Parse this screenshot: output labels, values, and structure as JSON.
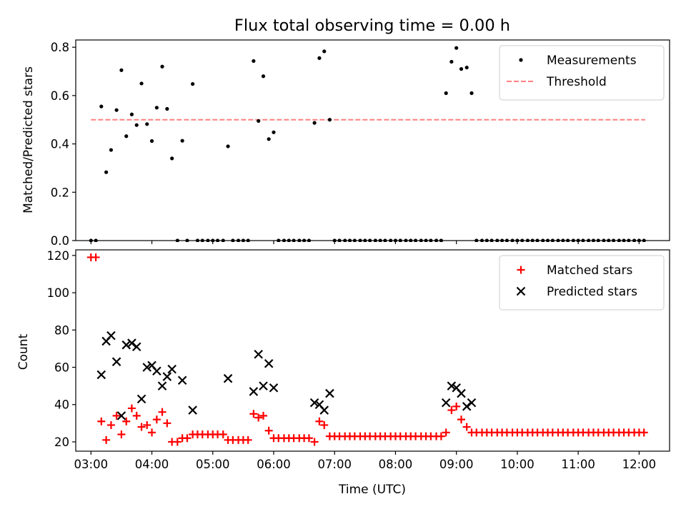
{
  "title": "Flux total observing time = 0.00 h",
  "colors": {
    "measurements": "#000000",
    "threshold": "#ff8080",
    "matched": "#ff0000",
    "predicted": "#000000"
  },
  "chart_data": [
    {
      "type": "scatter",
      "ylabel": "Matched/Predicted stars",
      "xlim": [
        2.75,
        12.5
      ],
      "ylim": [
        0,
        0.83
      ],
      "yticks": [
        0.0,
        0.2,
        0.4,
        0.6,
        0.8
      ],
      "ytick_labels": [
        "0.0",
        "0.2",
        "0.4",
        "0.6",
        "0.8"
      ],
      "legend_position": "top-right",
      "threshold": {
        "name": "Threshold",
        "value": 0.5,
        "x_range": [
          3.0,
          12.1
        ]
      },
      "series": [
        {
          "name": "Measurements",
          "marker": "dot",
          "points": [
            [
              3.0,
              0
            ],
            [
              3.08,
              0
            ],
            [
              3.17,
              0.555
            ],
            [
              3.25,
              0.283
            ],
            [
              3.33,
              0.375
            ],
            [
              3.42,
              0.54
            ],
            [
              3.5,
              0.705
            ],
            [
              3.58,
              0.432
            ],
            [
              3.67,
              0.522
            ],
            [
              3.75,
              0.478
            ],
            [
              3.83,
              0.65
            ],
            [
              3.92,
              0.482
            ],
            [
              4.0,
              0.412
            ],
            [
              4.08,
              0.55
            ],
            [
              4.17,
              0.72
            ],
            [
              4.25,
              0.545
            ],
            [
              4.33,
              0.34
            ],
            [
              4.42,
              0
            ],
            [
              4.5,
              0.413
            ],
            [
              4.58,
              0
            ],
            [
              4.67,
              0.648
            ],
            [
              4.75,
              0
            ],
            [
              4.83,
              0
            ],
            [
              4.92,
              0
            ],
            [
              5.0,
              0
            ],
            [
              5.08,
              0
            ],
            [
              5.17,
              0
            ],
            [
              5.25,
              0.39
            ],
            [
              5.33,
              0
            ],
            [
              5.42,
              0
            ],
            [
              5.5,
              0
            ],
            [
              5.58,
              0
            ],
            [
              5.67,
              0.743
            ],
            [
              5.75,
              0.495
            ],
            [
              5.83,
              0.68
            ],
            [
              5.92,
              0.42
            ],
            [
              6.0,
              0.448
            ],
            [
              6.08,
              0
            ],
            [
              6.17,
              0
            ],
            [
              6.25,
              0
            ],
            [
              6.33,
              0
            ],
            [
              6.42,
              0
            ],
            [
              6.5,
              0
            ],
            [
              6.58,
              0
            ],
            [
              6.67,
              0.487
            ],
            [
              6.75,
              0.755
            ],
            [
              6.83,
              0.783
            ],
            [
              6.92,
              0.5
            ],
            [
              7.0,
              0
            ],
            [
              7.08,
              0
            ],
            [
              7.17,
              0
            ],
            [
              7.25,
              0
            ],
            [
              7.33,
              0
            ],
            [
              7.42,
              0
            ],
            [
              7.5,
              0
            ],
            [
              7.58,
              0
            ],
            [
              7.67,
              0
            ],
            [
              7.75,
              0
            ],
            [
              7.83,
              0
            ],
            [
              7.92,
              0
            ],
            [
              8.0,
              0
            ],
            [
              8.08,
              0
            ],
            [
              8.17,
              0
            ],
            [
              8.25,
              0
            ],
            [
              8.33,
              0
            ],
            [
              8.42,
              0
            ],
            [
              8.5,
              0
            ],
            [
              8.58,
              0
            ],
            [
              8.67,
              0
            ],
            [
              8.75,
              0
            ],
            [
              8.83,
              0.61
            ],
            [
              8.92,
              0.74
            ],
            [
              9.0,
              0.797
            ],
            [
              9.08,
              0.71
            ],
            [
              9.17,
              0.716
            ],
            [
              9.25,
              0.61
            ],
            [
              9.33,
              0
            ],
            [
              9.42,
              0
            ],
            [
              9.5,
              0
            ],
            [
              9.58,
              0
            ],
            [
              9.67,
              0
            ],
            [
              9.75,
              0
            ],
            [
              9.83,
              0
            ],
            [
              9.92,
              0
            ],
            [
              10.0,
              0
            ],
            [
              10.08,
              0
            ],
            [
              10.17,
              0
            ],
            [
              10.25,
              0
            ],
            [
              10.33,
              0
            ],
            [
              10.42,
              0
            ],
            [
              10.5,
              0
            ],
            [
              10.58,
              0
            ],
            [
              10.67,
              0
            ],
            [
              10.75,
              0
            ],
            [
              10.83,
              0
            ],
            [
              10.92,
              0
            ],
            [
              11.0,
              0
            ],
            [
              11.08,
              0
            ],
            [
              11.17,
              0
            ],
            [
              11.25,
              0
            ],
            [
              11.33,
              0
            ],
            [
              11.42,
              0
            ],
            [
              11.5,
              0
            ],
            [
              11.58,
              0
            ],
            [
              11.67,
              0
            ],
            [
              11.75,
              0
            ],
            [
              11.83,
              0
            ],
            [
              11.92,
              0
            ],
            [
              12.0,
              0
            ],
            [
              12.08,
              0
            ]
          ]
        }
      ]
    },
    {
      "type": "scatter",
      "ylabel": "Count",
      "xlabel": "Time (UTC)",
      "xlim": [
        2.75,
        12.5
      ],
      "ylim": [
        15,
        123
      ],
      "yticks": [
        20,
        40,
        60,
        80,
        100,
        120
      ],
      "ytick_labels": [
        "20",
        "40",
        "60",
        "80",
        "100",
        "120"
      ],
      "xticks": [
        3,
        4,
        5,
        6,
        7,
        8,
        9,
        10,
        11,
        12
      ],
      "xtick_labels": [
        "03:00",
        "04:00",
        "05:00",
        "06:00",
        "07:00",
        "08:00",
        "09:00",
        "10:00",
        "11:00",
        "12:00"
      ],
      "legend_position": "top-right",
      "series": [
        {
          "name": "Matched stars",
          "marker": "plus",
          "points": [
            [
              3.0,
              119
            ],
            [
              3.08,
              119
            ],
            [
              3.17,
              31
            ],
            [
              3.25,
              21
            ],
            [
              3.33,
              29
            ],
            [
              3.42,
              34
            ],
            [
              3.5,
              24
            ],
            [
              3.58,
              31
            ],
            [
              3.67,
              38
            ],
            [
              3.75,
              34
            ],
            [
              3.83,
              28
            ],
            [
              3.92,
              29
            ],
            [
              4.0,
              25
            ],
            [
              4.08,
              32
            ],
            [
              4.17,
              36
            ],
            [
              4.25,
              30
            ],
            [
              4.33,
              20
            ],
            [
              4.42,
              20
            ],
            [
              4.5,
              22
            ],
            [
              4.58,
              22
            ],
            [
              4.67,
              24
            ],
            [
              4.75,
              24
            ],
            [
              4.83,
              24
            ],
            [
              4.92,
              24
            ],
            [
              5.0,
              24
            ],
            [
              5.08,
              24
            ],
            [
              5.17,
              24
            ],
            [
              5.25,
              21
            ],
            [
              5.33,
              21
            ],
            [
              5.42,
              21
            ],
            [
              5.5,
              21
            ],
            [
              5.58,
              21
            ],
            [
              5.67,
              35
            ],
            [
              5.75,
              33
            ],
            [
              5.83,
              34
            ],
            [
              5.92,
              26
            ],
            [
              6.0,
              22
            ],
            [
              6.08,
              22
            ],
            [
              6.17,
              22
            ],
            [
              6.25,
              22
            ],
            [
              6.33,
              22
            ],
            [
              6.42,
              22
            ],
            [
              6.5,
              22
            ],
            [
              6.58,
              22
            ],
            [
              6.67,
              20
            ],
            [
              6.75,
              31
            ],
            [
              6.83,
              29
            ],
            [
              6.92,
              23
            ],
            [
              7.0,
              23
            ],
            [
              7.08,
              23
            ],
            [
              7.17,
              23
            ],
            [
              7.25,
              23
            ],
            [
              7.33,
              23
            ],
            [
              7.42,
              23
            ],
            [
              7.5,
              23
            ],
            [
              7.58,
              23
            ],
            [
              7.67,
              23
            ],
            [
              7.75,
              23
            ],
            [
              7.83,
              23
            ],
            [
              7.92,
              23
            ],
            [
              8.0,
              23
            ],
            [
              8.08,
              23
            ],
            [
              8.17,
              23
            ],
            [
              8.25,
              23
            ],
            [
              8.33,
              23
            ],
            [
              8.42,
              23
            ],
            [
              8.5,
              23
            ],
            [
              8.58,
              23
            ],
            [
              8.67,
              23
            ],
            [
              8.75,
              23
            ],
            [
              8.83,
              25
            ],
            [
              8.92,
              37
            ],
            [
              9.0,
              39
            ],
            [
              9.08,
              32
            ],
            [
              9.17,
              28
            ],
            [
              9.25,
              25
            ],
            [
              9.33,
              25
            ],
            [
              9.42,
              25
            ],
            [
              9.5,
              25
            ],
            [
              9.58,
              25
            ],
            [
              9.67,
              25
            ],
            [
              9.75,
              25
            ],
            [
              9.83,
              25
            ],
            [
              9.92,
              25
            ],
            [
              10.0,
              25
            ],
            [
              10.08,
              25
            ],
            [
              10.17,
              25
            ],
            [
              10.25,
              25
            ],
            [
              10.33,
              25
            ],
            [
              10.42,
              25
            ],
            [
              10.5,
              25
            ],
            [
              10.58,
              25
            ],
            [
              10.67,
              25
            ],
            [
              10.75,
              25
            ],
            [
              10.83,
              25
            ],
            [
              10.92,
              25
            ],
            [
              11.0,
              25
            ],
            [
              11.08,
              25
            ],
            [
              11.17,
              25
            ],
            [
              11.25,
              25
            ],
            [
              11.33,
              25
            ],
            [
              11.42,
              25
            ],
            [
              11.5,
              25
            ],
            [
              11.58,
              25
            ],
            [
              11.67,
              25
            ],
            [
              11.75,
              25
            ],
            [
              11.83,
              25
            ],
            [
              11.92,
              25
            ],
            [
              12.0,
              25
            ],
            [
              12.08,
              25
            ]
          ]
        },
        {
          "name": "Predicted stars",
          "marker": "x",
          "points": [
            [
              3.17,
              56
            ],
            [
              3.25,
              74
            ],
            [
              3.33,
              77
            ],
            [
              3.42,
              63
            ],
            [
              3.5,
              34
            ],
            [
              3.58,
              72
            ],
            [
              3.67,
              73
            ],
            [
              3.75,
              71
            ],
            [
              3.83,
              43
            ],
            [
              3.92,
              60
            ],
            [
              4.0,
              61
            ],
            [
              4.08,
              58
            ],
            [
              4.17,
              50
            ],
            [
              4.25,
              55
            ],
            [
              4.33,
              59
            ],
            [
              4.5,
              53
            ],
            [
              4.67,
              37
            ],
            [
              5.25,
              54
            ],
            [
              5.67,
              47
            ],
            [
              5.75,
              67
            ],
            [
              5.83,
              50
            ],
            [
              5.92,
              62
            ],
            [
              6.0,
              49
            ],
            [
              6.67,
              41
            ],
            [
              6.75,
              40
            ],
            [
              6.83,
              37
            ],
            [
              6.92,
              46
            ],
            [
              8.83,
              41
            ],
            [
              8.92,
              50
            ],
            [
              9.0,
              49
            ],
            [
              9.08,
              46
            ],
            [
              9.17,
              39
            ],
            [
              9.25,
              41
            ]
          ]
        }
      ]
    }
  ]
}
